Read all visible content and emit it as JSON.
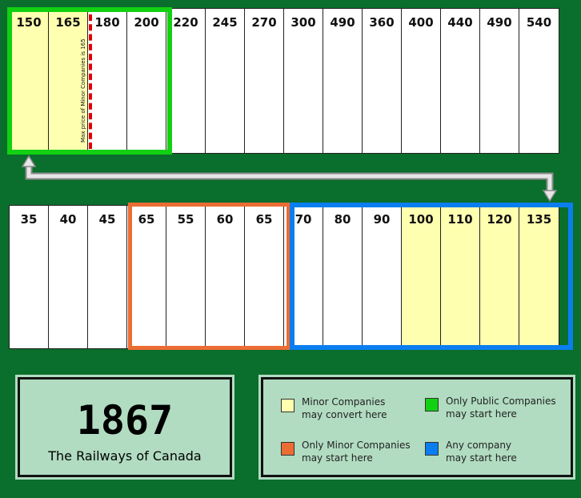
{
  "top_row": [
    {
      "value": "150",
      "zone": "yellow"
    },
    {
      "value": "165",
      "zone": "yellow"
    },
    {
      "value": "180",
      "zone": "white"
    },
    {
      "value": "200",
      "zone": "white"
    },
    {
      "value": "220",
      "zone": "white"
    },
    {
      "value": "245",
      "zone": "white"
    },
    {
      "value": "270",
      "zone": "white"
    },
    {
      "value": "300",
      "zone": "white"
    },
    {
      "value": "490",
      "zone": "white"
    },
    {
      "value": "360",
      "zone": "white"
    },
    {
      "value": "400",
      "zone": "white"
    },
    {
      "value": "440",
      "zone": "white"
    },
    {
      "value": "490",
      "zone": "white"
    },
    {
      "value": "540",
      "zone": "white"
    }
  ],
  "bottom_row": [
    {
      "value": "35",
      "zone": "white"
    },
    {
      "value": "40",
      "zone": "white"
    },
    {
      "value": "45",
      "zone": "white"
    },
    {
      "value": "65",
      "zone": "white"
    },
    {
      "value": "55",
      "zone": "white"
    },
    {
      "value": "60",
      "zone": "white"
    },
    {
      "value": "65",
      "zone": "white"
    },
    {
      "value": "70",
      "zone": "white"
    },
    {
      "value": "80",
      "zone": "white"
    },
    {
      "value": "90",
      "zone": "white"
    },
    {
      "value": "100",
      "zone": "yellow"
    },
    {
      "value": "110",
      "zone": "yellow"
    },
    {
      "value": "120",
      "zone": "yellow"
    },
    {
      "value": "135",
      "zone": "yellow"
    }
  ],
  "max_price_note": "Max price of Minor Companies is 165",
  "title": {
    "year": "1867",
    "subtitle": "The Railways of Canada"
  },
  "legend": [
    {
      "color": "#ffffb0",
      "line1": "Minor Companies",
      "line2": "may convert here"
    },
    {
      "color": "#12d012",
      "line1": "Only Public Companies",
      "line2": "may start here"
    },
    {
      "color": "#ec6d34",
      "line1": "Only Minor Companies",
      "line2": "may start here"
    },
    {
      "color": "#0a7ef0",
      "line1": "Any company",
      "line2": "may start here"
    }
  ],
  "colors": {
    "background": "#0a6e2c",
    "yellow": "#ffffb0",
    "green": "#12d012",
    "orange": "#ec6d34",
    "blue": "#0a7ef0",
    "panel": "#b1dcc1",
    "max_line": "#e00000"
  }
}
